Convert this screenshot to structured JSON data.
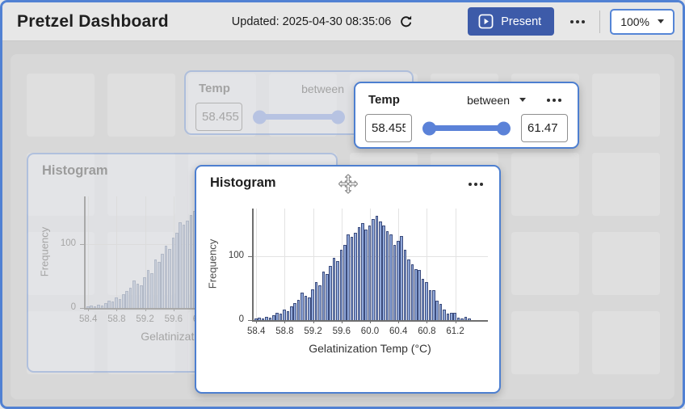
{
  "header": {
    "title": "Pretzel Dashboard",
    "updated_label": "Updated: 2025-04-30 08:35:06",
    "present_label": "Present",
    "zoom_value": "100%"
  },
  "temp_widget": {
    "title": "Temp",
    "operator": "between",
    "min_value": "58.455",
    "max_value": "61.47"
  },
  "histogram_widget": {
    "title": "Histogram"
  },
  "colors": {
    "accent_border": "#4d7fd0",
    "present_button": "#3d5ba9",
    "slider": "#5b82d8",
    "bar_fill": "#8fa7d9",
    "bar_border": "#3c4c7d"
  },
  "chart_data": {
    "type": "bar",
    "title": "Histogram",
    "xlabel": "Gelatinization Temp (°C)",
    "ylabel": "Frequency",
    "x_start": 58.4,
    "bin_width": 0.05,
    "values": [
      2,
      4,
      3,
      5,
      4,
      8,
      12,
      10,
      16,
      14,
      22,
      26,
      32,
      43,
      38,
      36,
      48,
      60,
      55,
      76,
      72,
      85,
      98,
      92,
      110,
      118,
      135,
      130,
      137,
      146,
      152,
      142,
      148,
      158,
      163,
      155,
      148,
      140,
      135,
      118,
      124,
      132,
      110,
      95,
      87,
      80,
      78,
      65,
      60,
      47,
      47,
      30,
      25,
      17,
      10,
      12,
      12,
      4,
      3,
      5,
      2
    ],
    "x_ticks": [
      "58.4",
      "58.8",
      "59.2",
      "59.6",
      "60.0",
      "60.4",
      "60.8",
      "61.2"
    ],
    "y_ticks": [
      "0",
      "100"
    ],
    "xlim": [
      58.35,
      61.5
    ],
    "ylim": [
      0,
      175
    ],
    "grid": true,
    "legend": false
  }
}
